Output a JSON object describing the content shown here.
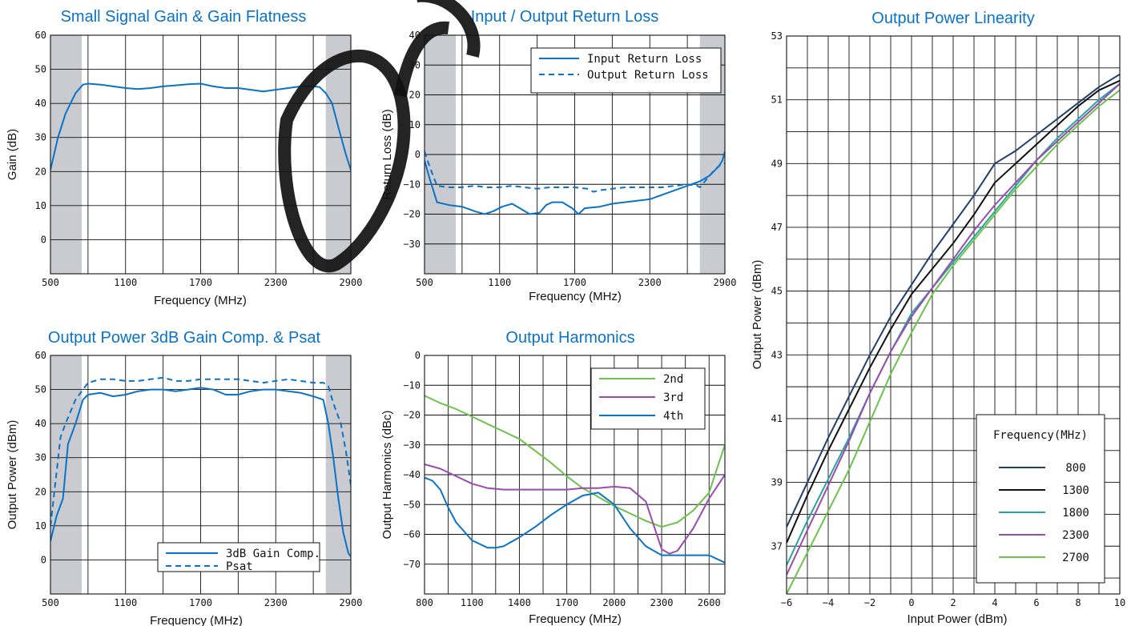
{
  "colors": {
    "blue": "#0a73c8",
    "navy": "#1f3f6e",
    "black": "#111111",
    "teal": "#26a69a",
    "purple": "#9b4bb0",
    "green": "#6cc24a",
    "band": "#c9cbd1"
  },
  "chart_data": [
    {
      "type": "line",
      "title": "Small Signal Gain & Gain Flatness",
      "xlabel": "Frequency (MHz)",
      "ylabel": "Gain (dB)",
      "xlim": [
        500,
        2900
      ],
      "ylim": [
        -10,
        60
      ],
      "x_ticks": [
        500,
        1100,
        1700,
        2300,
        2900
      ],
      "y_ticks": [
        0,
        10,
        20,
        30,
        40,
        50,
        60
      ],
      "grid": true,
      "legend": "none",
      "shaded": [
        [
          500,
          750
        ],
        [
          2700,
          2900
        ]
      ],
      "series": [
        {
          "name": "",
          "color": "#0a73c8",
          "dash": false,
          "x": [
            500,
            560,
            620,
            700,
            760,
            800,
            900,
            1000,
            1100,
            1200,
            1300,
            1400,
            1500,
            1600,
            1700,
            1800,
            1900,
            2000,
            2100,
            2200,
            2300,
            2400,
            2500,
            2600,
            2650,
            2700,
            2750,
            2800,
            2860,
            2900
          ],
          "y": [
            20.5,
            30,
            37,
            43,
            45.5,
            45.8,
            45.5,
            45,
            44.5,
            44.2,
            44.5,
            45,
            45.3,
            45.6,
            45.8,
            45,
            44.5,
            44.5,
            44,
            43.5,
            44,
            44.5,
            45,
            45,
            44.8,
            43,
            40,
            33,
            25,
            20.5
          ]
        }
      ]
    },
    {
      "type": "line",
      "title": "Input / Output Return Loss",
      "xlabel": "Frequency (MHz)",
      "ylabel": "Return Loss (dB)",
      "xlim": [
        500,
        2900
      ],
      "ylim": [
        -40,
        40
      ],
      "x_ticks": [
        500,
        1100,
        1700,
        2300,
        2900
      ],
      "y_ticks": [
        -30,
        -20,
        -10,
        0,
        10,
        20,
        30,
        40
      ],
      "grid": true,
      "legend": "top-right",
      "shaded": [
        [
          500,
          750
        ],
        [
          2700,
          2900
        ]
      ],
      "series": [
        {
          "name": "Input Return Loss",
          "color": "#0a73c8",
          "dash": false,
          "x": [
            500,
            540,
            600,
            700,
            800,
            900,
            980,
            1050,
            1120,
            1200,
            1280,
            1340,
            1420,
            1470,
            1520,
            1600,
            1680,
            1730,
            1780,
            1900,
            2000,
            2200,
            2300,
            2400,
            2500,
            2600,
            2700,
            2780,
            2850,
            2880,
            2900
          ],
          "y": [
            -2,
            -8,
            -16,
            -17,
            -17.5,
            -19,
            -20,
            -19,
            -17.5,
            -16.5,
            -18.5,
            -20,
            -19.5,
            -17,
            -16,
            -16,
            -18,
            -20,
            -18,
            -17.5,
            -16.5,
            -15.5,
            -15,
            -13.5,
            -12,
            -10.5,
            -9,
            -7,
            -4,
            -2,
            1
          ]
        },
        {
          "name": "Output Return Loss",
          "color": "#0a73c8",
          "dash": true,
          "x": [
            500,
            540,
            600,
            700,
            800,
            900,
            1000,
            1100,
            1200,
            1300,
            1400,
            1500,
            1600,
            1700,
            1800,
            1850,
            1900,
            2000,
            2100,
            2200,
            2300,
            2400,
            2500,
            2600,
            2680,
            2700,
            2760,
            2820,
            2880,
            2900
          ],
          "y": [
            1,
            -4,
            -10.5,
            -11,
            -11,
            -10.5,
            -11,
            -11,
            -10.5,
            -11,
            -11.5,
            -11,
            -11,
            -11,
            -11.5,
            -12.5,
            -12,
            -11.5,
            -11,
            -11,
            -11,
            -11,
            -10.5,
            -10,
            -10.5,
            -11,
            -8,
            -5,
            -3,
            -3
          ]
        }
      ]
    },
    {
      "type": "line",
      "title": "Output Power 3dB Gain Comp. & Psat",
      "xlabel": "Frequency (MHz)",
      "ylabel": "Output Power (dBm)",
      "xlim": [
        500,
        2900
      ],
      "ylim": [
        -10,
        60
      ],
      "x_ticks": [
        500,
        1100,
        1700,
        2300,
        2900
      ],
      "y_ticks": [
        0,
        10,
        20,
        30,
        40,
        50,
        60
      ],
      "grid": true,
      "legend": "bottom-right",
      "shaded": [
        [
          500,
          750
        ],
        [
          2700,
          2900
        ]
      ],
      "series": [
        {
          "name": "3dB Gain Comp.",
          "color": "#0a73c8",
          "dash": false,
          "x": [
            500,
            550,
            600,
            640,
            700,
            760,
            800,
            900,
            1000,
            1100,
            1200,
            1300,
            1400,
            1500,
            1600,
            1700,
            1800,
            1900,
            2000,
            2100,
            2200,
            2300,
            2400,
            2500,
            2600,
            2680,
            2720,
            2760,
            2800,
            2840,
            2880,
            2900
          ],
          "y": [
            5.5,
            13,
            18,
            34,
            40,
            47,
            48.5,
            49,
            48,
            48.5,
            49.5,
            50,
            50,
            49.5,
            50,
            50.5,
            50,
            48.5,
            48.5,
            49.5,
            50,
            50,
            49.5,
            49,
            48,
            47,
            40,
            30,
            18,
            8,
            2,
            1
          ]
        },
        {
          "name": "Psat",
          "color": "#0a73c8",
          "dash": true,
          "x": [
            500,
            540,
            580,
            620,
            700,
            760,
            800,
            900,
            1000,
            1100,
            1200,
            1300,
            1400,
            1500,
            1600,
            1700,
            1800,
            1900,
            2000,
            2100,
            2200,
            2300,
            2400,
            2500,
            2600,
            2680,
            2720,
            2760,
            2820,
            2860,
            2900
          ],
          "y": [
            10,
            23,
            36,
            40,
            47,
            50,
            52,
            53,
            53,
            52.5,
            52.5,
            53,
            53.5,
            52.5,
            52.5,
            53,
            53,
            53,
            53,
            52.5,
            52,
            52.5,
            53,
            52.5,
            52,
            52,
            51,
            46,
            40,
            32,
            22
          ]
        }
      ]
    },
    {
      "type": "line",
      "title": "Output Harmonics",
      "xlabel": "Frequency (MHz)",
      "ylabel": "Output Harmonics (dBc)",
      "xlim": [
        800,
        2700
      ],
      "ylim": [
        -80,
        0
      ],
      "x_ticks": [
        800,
        1100,
        1400,
        1700,
        2000,
        2300,
        2600
      ],
      "y_ticks": [
        0,
        -10,
        -20,
        -30,
        -40,
        -50,
        -60,
        -70
      ],
      "grid": true,
      "legend": "top-right",
      "shaded": [],
      "series": [
        {
          "name": "2nd",
          "color": "#6cc24a",
          "dash": false,
          "x": [
            800,
            900,
            1000,
            1100,
            1200,
            1300,
            1400,
            1500,
            1600,
            1700,
            1800,
            1900,
            2000,
            2100,
            2200,
            2300,
            2400,
            2500,
            2600,
            2650,
            2700
          ],
          "y": [
            -13.5,
            -16,
            -18,
            -20.5,
            -23,
            -25.5,
            -28,
            -32,
            -36,
            -40.5,
            -44.5,
            -47.5,
            -50.5,
            -53,
            -55.5,
            -57.5,
            -56,
            -52,
            -46,
            -38,
            -30
          ]
        },
        {
          "name": "3rd",
          "color": "#9b4bb0",
          "dash": false,
          "x": [
            800,
            900,
            1000,
            1100,
            1200,
            1300,
            1400,
            1500,
            1600,
            1700,
            1800,
            1900,
            2000,
            2100,
            2200,
            2250,
            2300,
            2350,
            2400,
            2500,
            2600,
            2700
          ],
          "y": [
            -36.5,
            -38,
            -40.5,
            -43,
            -44.5,
            -45,
            -45,
            -45,
            -45,
            -45,
            -44.5,
            -44.5,
            -44,
            -44.5,
            -49,
            -57,
            -65,
            -66.5,
            -65.5,
            -58,
            -48,
            -40
          ]
        },
        {
          "name": "4th",
          "color": "#0a73c8",
          "dash": false,
          "x": [
            800,
            850,
            900,
            950,
            1000,
            1100,
            1200,
            1250,
            1300,
            1400,
            1500,
            1600,
            1700,
            1800,
            1900,
            2000,
            2100,
            2200,
            2300,
            2400,
            2500,
            2600,
            2700
          ],
          "y": [
            -41,
            -42,
            -45,
            -51,
            -56,
            -62,
            -64.5,
            -64.5,
            -64,
            -61,
            -57.5,
            -53.5,
            -50,
            -47,
            -46,
            -50,
            -58,
            -64,
            -67,
            -67,
            -67,
            -67,
            -69.5
          ]
        }
      ]
    },
    {
      "type": "line",
      "title": "Output Power Linearity",
      "xlabel": "Input Power (dBm)",
      "ylabel": "Output Power (dBm)",
      "xlim": [
        -6,
        10
      ],
      "ylim": [
        35.5,
        53
      ],
      "x_ticks": [
        -6,
        -4,
        -2,
        0,
        2,
        4,
        6,
        8,
        10
      ],
      "y_ticks": [
        37,
        39,
        41,
        43,
        45,
        47,
        49,
        51,
        53
      ],
      "grid": true,
      "legend": "bottom-right",
      "legend_title": "Frequency(MHz)",
      "shaded": [],
      "series": [
        {
          "name": "800",
          "color": "#1f3f6e",
          "dash": false,
          "x": [
            -6,
            -5,
            -4,
            -3,
            -2,
            -1,
            0,
            1,
            2,
            3,
            4,
            5,
            6,
            7,
            8,
            9,
            10
          ],
          "y": [
            37.6,
            39,
            40.4,
            41.7,
            43,
            44.2,
            45.2,
            46.2,
            47.1,
            48,
            49,
            49.4,
            49.9,
            50.4,
            50.9,
            51.4,
            51.8
          ]
        },
        {
          "name": "1300",
          "color": "#111111",
          "dash": false,
          "x": [
            -6,
            -5,
            -4,
            -3,
            -2,
            -1,
            0,
            1,
            2,
            3,
            4,
            5,
            6,
            7,
            8,
            9,
            10
          ],
          "y": [
            37.1,
            38.6,
            40,
            41.3,
            42.6,
            43.8,
            44.9,
            45.7,
            46.5,
            47.4,
            48.4,
            49,
            49.6,
            50.2,
            50.8,
            51.3,
            51.6
          ]
        },
        {
          "name": "1800",
          "color": "#26a69a",
          "dash": false,
          "x": [
            -6,
            -5,
            -4,
            -3,
            -2,
            -1,
            0,
            1,
            2,
            3,
            4,
            5,
            6,
            7,
            8,
            9,
            10
          ],
          "y": [
            36.4,
            37.8,
            39.1,
            40.4,
            41.8,
            43.1,
            44.3,
            45.1,
            45.9,
            46.7,
            47.5,
            48.3,
            49.1,
            49.8,
            50.4,
            51,
            51.5
          ]
        },
        {
          "name": "2300",
          "color": "#9b4bb0",
          "dash": false,
          "x": [
            -6,
            -5,
            -4,
            -3,
            -2,
            -1,
            0,
            1,
            2,
            3,
            4,
            5,
            6,
            7,
            8,
            9,
            10
          ],
          "y": [
            36.1,
            37.5,
            38.9,
            40.3,
            41.8,
            43.1,
            44.2,
            45.1,
            46,
            46.9,
            47.7,
            48.4,
            49.1,
            49.7,
            50.3,
            50.9,
            51.5
          ]
        },
        {
          "name": "2700",
          "color": "#6cc24a",
          "dash": false,
          "x": [
            -6,
            -5,
            -4,
            -3,
            -2,
            -1,
            0,
            1,
            2,
            3,
            4,
            5,
            6,
            7,
            8,
            9,
            10
          ],
          "y": [
            35.5,
            36.8,
            38.1,
            39.4,
            40.9,
            42.4,
            43.7,
            44.9,
            45.8,
            46.6,
            47.4,
            48.2,
            48.9,
            49.6,
            50.2,
            50.8,
            51.3
          ]
        }
      ]
    }
  ]
}
